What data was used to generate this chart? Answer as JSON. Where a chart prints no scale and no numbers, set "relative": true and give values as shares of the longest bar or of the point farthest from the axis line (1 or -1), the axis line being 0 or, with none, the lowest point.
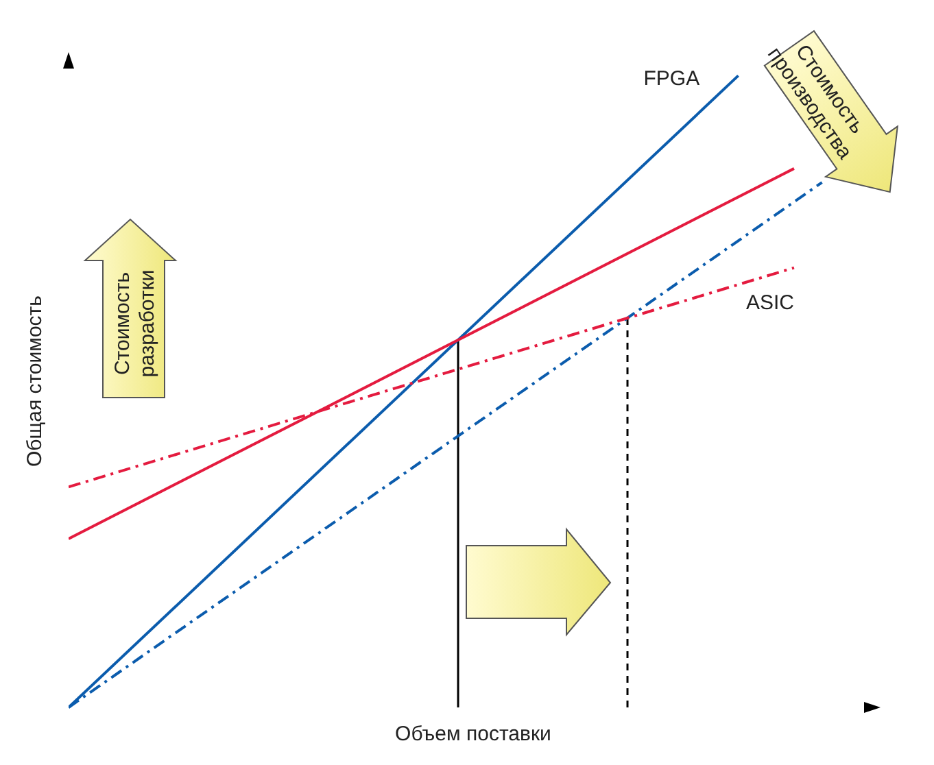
{
  "chart_data": {
    "type": "line",
    "relative": true,
    "xlabel": "Объем поставки",
    "ylabel": "Общая стоимость",
    "categories": [
      null,
      null,
      null,
      null,
      null,
      null,
      null,
      null,
      null,
      null,
      null,
      null,
      null,
      null,
      null,
      null,
      null,
      null,
      null,
      null,
      null,
      null,
      null,
      null,
      null,
      null,
      null,
      null,
      null,
      null
    ],
    "series": [
      {
        "name": "FPGA",
        "color": "#0b5cad",
        "line_style": "solid",
        "values": [
          0,
          null,
          null,
          null,
          null,
          null,
          null,
          null,
          null,
          null,
          null,
          null,
          null,
          null,
          null,
          null,
          null,
          null,
          null,
          null,
          null,
          null,
          null,
          null,
          1,
          null,
          null,
          null,
          null,
          null
        ]
      },
      {
        "color": "#e41b3f",
        "line_style": "solid",
        "values": [
          0.267,
          null,
          null,
          null,
          null,
          null,
          null,
          null,
          null,
          null,
          null,
          null,
          null,
          null,
          null,
          null,
          null,
          null,
          null,
          null,
          null,
          null,
          null,
          null,
          null,
          null,
          0.853,
          null,
          null,
          null
        ]
      },
      {
        "color": "#0b5cad",
        "line_style": "dashed",
        "values": [
          0,
          null,
          null,
          null,
          null,
          null,
          null,
          null,
          null,
          null,
          null,
          null,
          null,
          null,
          null,
          null,
          null,
          null,
          null,
          null,
          null,
          null,
          null,
          null,
          null,
          null,
          null,
          0.831,
          null,
          null
        ]
      },
      {
        "name": "ASIC",
        "color": "#e41b3f",
        "line_style": "dashed",
        "values": [
          0.349,
          null,
          null,
          null,
          null,
          null,
          null,
          null,
          null,
          null,
          null,
          null,
          null,
          null,
          null,
          null,
          null,
          null,
          null,
          null,
          null,
          null,
          null,
          null,
          null,
          null,
          0.696,
          null,
          null,
          null
        ]
      }
    ],
    "annotations": [
      "Стоимость разработки",
      "Стоимость производства"
    ]
  }
}
